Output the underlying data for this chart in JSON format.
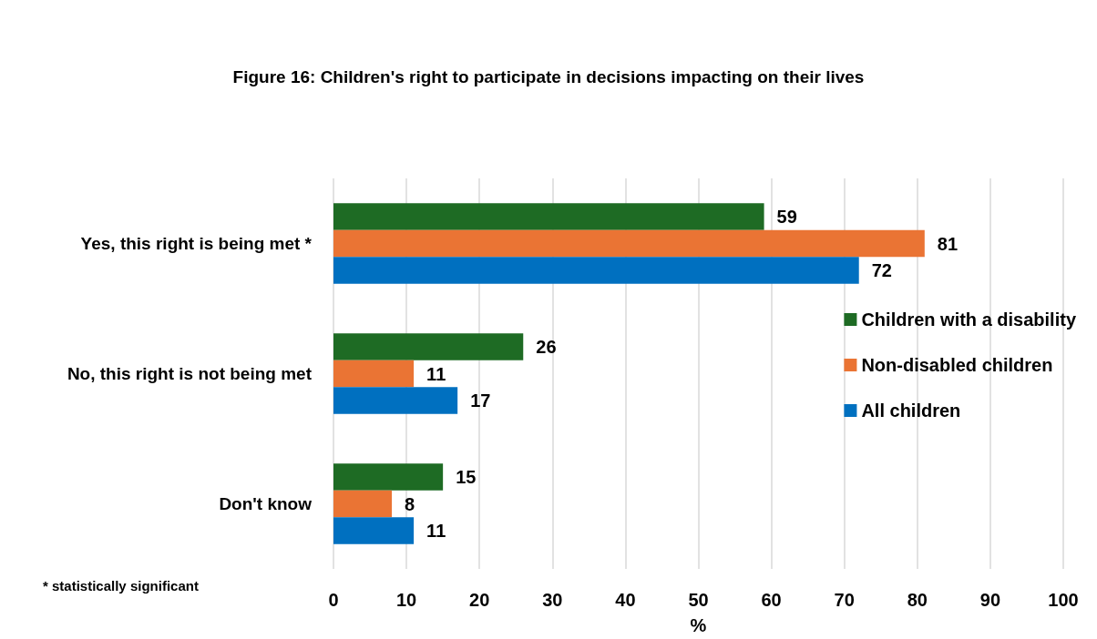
{
  "chart_data": {
    "type": "bar",
    "orientation": "horizontal",
    "title": "Figure 16: Children's right to participate in decisions impacting on their lives",
    "xlabel": "%",
    "categories": [
      "Yes, this right is being met *",
      "No, this right is not being met",
      "Don't know"
    ],
    "series": [
      {
        "name": "Children with a disability",
        "color": "#1e6b24",
        "values": [
          59,
          26,
          15
        ]
      },
      {
        "name": "Non-disabled children",
        "color": "#ea7434",
        "values": [
          81,
          11,
          8
        ]
      },
      {
        "name": "All children",
        "color": "#0070c0",
        "values": [
          72,
          17,
          11
        ]
      }
    ],
    "xlim": [
      0,
      100
    ],
    "xticks": [
      0,
      10,
      20,
      30,
      40,
      50,
      60,
      70,
      80,
      90,
      100
    ],
    "grid": "x",
    "legend": "right",
    "data_labels": true,
    "annotations": [
      "* statistically significant"
    ]
  }
}
